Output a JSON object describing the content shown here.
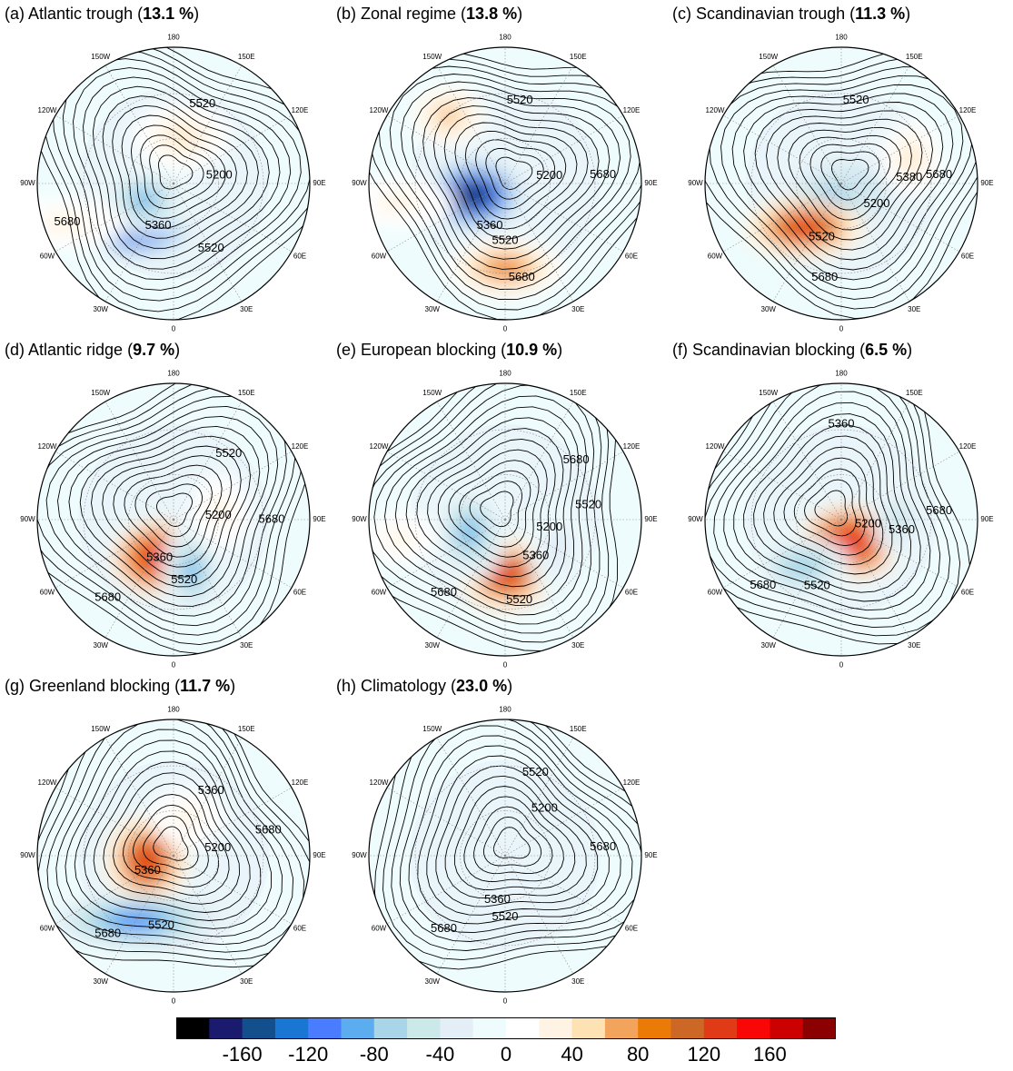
{
  "panels": [
    {
      "id": "a",
      "label": "(a) Atlantic trough",
      "pct": "13.1 %",
      "anoms": [
        {
          "lon": -40,
          "r": 0.42,
          "v": -175,
          "sx": 1.5,
          "sy": 0.8
        },
        {
          "lon": -60,
          "r": 0.25,
          "v": -90,
          "sx": 1.2,
          "sy": 0.9
        },
        {
          "lon": 170,
          "r": 0.35,
          "v": 40,
          "sx": 1.3,
          "sy": 0.9
        },
        {
          "lon": -70,
          "r": 0.85,
          "v": 30,
          "sx": 1.6,
          "sy": 0.7
        }
      ],
      "contours": [
        {
          "text": "5520",
          "lon": 160,
          "r": 0.62
        },
        {
          "text": "5200",
          "lon": 100,
          "r": 0.34
        },
        {
          "text": "5680",
          "lon": -70,
          "r": 0.83
        },
        {
          "text": "5360",
          "lon": -20,
          "r": 0.33
        },
        {
          "text": "5520",
          "lon": 30,
          "r": 0.55
        }
      ]
    },
    {
      "id": "b",
      "label": "(b) Zonal regime",
      "pct": "13.8 %",
      "anoms": [
        {
          "lon": -70,
          "r": 0.25,
          "v": -180,
          "sx": 1.4,
          "sy": 1.0
        },
        {
          "lon": 0,
          "r": 0.62,
          "v": 80,
          "sx": 1.6,
          "sy": 0.8
        },
        {
          "lon": -140,
          "r": 0.65,
          "v": 60,
          "sx": 1.0,
          "sy": 0.8
        },
        {
          "lon": -80,
          "r": 0.8,
          "v": 30,
          "sx": 1.5,
          "sy": 0.7
        }
      ],
      "contours": [
        {
          "text": "5520",
          "lon": 170,
          "r": 0.62
        },
        {
          "text": "5200",
          "lon": 100,
          "r": 0.33
        },
        {
          "text": "5680",
          "lon": 95,
          "r": 0.72
        },
        {
          "text": "5360",
          "lon": -20,
          "r": 0.33
        },
        {
          "text": "5520",
          "lon": 0,
          "r": 0.42
        },
        {
          "text": "5680",
          "lon": 10,
          "r": 0.7
        }
      ]
    },
    {
      "id": "c",
      "label": "(c) Scandinavian trough",
      "pct": "11.3 %",
      "anoms": [
        {
          "lon": 0,
          "r": 0.1,
          "v": -150,
          "sx": 1.4,
          "sy": 1.0
        },
        {
          "lon": -30,
          "r": 0.2,
          "v": -110,
          "sx": 1.3,
          "sy": 0.9
        },
        {
          "lon": -40,
          "r": 0.42,
          "v": 140,
          "sx": 1.6,
          "sy": 0.8
        },
        {
          "lon": 110,
          "r": 0.55,
          "v": 40,
          "sx": 0.8,
          "sy": 1.0
        }
      ],
      "contours": [
        {
          "text": "5520",
          "lon": 170,
          "r": 0.62
        },
        {
          "text": "5380",
          "lon": 95,
          "r": 0.5
        },
        {
          "text": "5200",
          "lon": 60,
          "r": 0.3
        },
        {
          "text": "5680",
          "lon": 95,
          "r": 0.72
        },
        {
          "text": "5520",
          "lon": -20,
          "r": 0.42
        },
        {
          "text": "5680",
          "lon": -10,
          "r": 0.7
        }
      ]
    },
    {
      "id": "d",
      "label": "(d) Atlantic ridge",
      "pct": "9.7 %",
      "anoms": [
        {
          "lon": -20,
          "r": 0.3,
          "v": 150,
          "sx": 1.3,
          "sy": 1.0
        },
        {
          "lon": 20,
          "r": 0.4,
          "v": -90,
          "sx": 0.8,
          "sy": 1.3
        },
        {
          "lon": 100,
          "r": 0.35,
          "v": 30,
          "sx": 0.8,
          "sy": 1.0
        }
      ],
      "contours": [
        {
          "text": "5520",
          "lon": 140,
          "r": 0.63
        },
        {
          "text": "5200",
          "lon": 95,
          "r": 0.33
        },
        {
          "text": "5680",
          "lon": 90,
          "r": 0.72
        },
        {
          "text": "5360",
          "lon": -20,
          "r": 0.3
        },
        {
          "text": "5520",
          "lon": 10,
          "r": 0.45
        },
        {
          "text": "5680",
          "lon": -40,
          "r": 0.75
        }
      ]
    },
    {
      "id": "e",
      "label": "(e) European blocking",
      "pct": "10.9 %",
      "anoms": [
        {
          "lon": 0,
          "r": 0.4,
          "v": 140,
          "sx": 1.3,
          "sy": 1.0
        },
        {
          "lon": -70,
          "r": 0.28,
          "v": -90,
          "sx": 1.0,
          "sy": 1.3
        },
        {
          "lon": 60,
          "r": 0.45,
          "v": -40,
          "sx": 0.8,
          "sy": 1.2
        },
        {
          "lon": -80,
          "r": 0.78,
          "v": 30,
          "sx": 1.0,
          "sy": 0.7
        }
      ],
      "contours": [
        {
          "text": "5680",
          "lon": 130,
          "r": 0.68
        },
        {
          "text": "5520",
          "lon": 100,
          "r": 0.62
        },
        {
          "text": "5200",
          "lon": 80,
          "r": 0.33
        },
        {
          "text": "5360",
          "lon": 40,
          "r": 0.35
        },
        {
          "text": "5520",
          "lon": 10,
          "r": 0.6
        },
        {
          "text": "5680",
          "lon": -40,
          "r": 0.7
        }
      ]
    },
    {
      "id": "f",
      "label": "(f) Scandinavian blocking",
      "pct": "6.5 %",
      "anoms": [
        {
          "lon": 20,
          "r": 0.18,
          "v": 150,
          "sx": 1.4,
          "sy": 1.0
        },
        {
          "lon": -40,
          "r": 0.45,
          "v": -80,
          "sx": 1.3,
          "sy": 0.8
        },
        {
          "lon": 90,
          "r": 0.42,
          "v": -60,
          "sx": 0.7,
          "sy": 1.0
        }
      ],
      "contours": [
        {
          "text": "5360",
          "lon": 180,
          "r": 0.7
        },
        {
          "text": "5200",
          "lon": 80,
          "r": 0.2
        },
        {
          "text": "5360",
          "lon": 80,
          "r": 0.45
        },
        {
          "text": "5680",
          "lon": 95,
          "r": 0.72
        },
        {
          "text": "5680",
          "lon": -50,
          "r": 0.75
        },
        {
          "text": "5520",
          "lon": -20,
          "r": 0.52
        }
      ]
    },
    {
      "id": "g",
      "label": "(g) Greenland blocking",
      "pct": "11.7 %",
      "anoms": [
        {
          "lon": -80,
          "r": 0.2,
          "v": 145,
          "sx": 1.1,
          "sy": 1.2
        },
        {
          "lon": -30,
          "r": 0.55,
          "v": -120,
          "sx": 2.2,
          "sy": 0.7
        },
        {
          "lon": 160,
          "r": 0.3,
          "v": 30,
          "sx": 1.0,
          "sy": 0.8
        }
      ],
      "contours": [
        {
          "text": "5360",
          "lon": 150,
          "r": 0.55
        },
        {
          "text": "5680",
          "lon": 105,
          "r": 0.72
        },
        {
          "text": "5200",
          "lon": 100,
          "r": 0.33
        },
        {
          "text": "5360",
          "lon": -60,
          "r": 0.22
        },
        {
          "text": "5520",
          "lon": -10,
          "r": 0.52
        },
        {
          "text": "5680",
          "lon": -40,
          "r": 0.75
        }
      ]
    },
    {
      "id": "h",
      "label": "(h) Climatology",
      "pct": "23.0 %",
      "anoms": [],
      "contours": [
        {
          "text": "5520",
          "lon": 160,
          "r": 0.65
        },
        {
          "text": "5200",
          "lon": 140,
          "r": 0.45
        },
        {
          "text": "5680",
          "lon": 95,
          "r": 0.72
        },
        {
          "text": "5360",
          "lon": -10,
          "r": 0.33
        },
        {
          "text": "5520",
          "lon": 0,
          "r": 0.45
        },
        {
          "text": "5680",
          "lon": -40,
          "r": 0.7
        }
      ]
    }
  ],
  "lon_labels": [
    "180",
    "150E",
    "120E",
    "90E",
    "60E",
    "30E",
    "0",
    "30W",
    "60W",
    "90W",
    "120W",
    "150W"
  ],
  "colorbar": {
    "colors": [
      "#000000",
      "#1a1a6e",
      "#124f8c",
      "#1976d2",
      "#4a7cff",
      "#5cadf0",
      "#a8d6e8",
      "#cce9ea",
      "#e4eef7",
      "#eefcfd",
      "#ffffff",
      "#fff4e4",
      "#ffe2b4",
      "#f2a35c",
      "#ec7a06",
      "#cd6726",
      "#e03a16",
      "#f90606",
      "#cc0000",
      "#8b0000"
    ],
    "ticks": [
      {
        "label": "-160",
        "frac": 0.1
      },
      {
        "label": "-120",
        "frac": 0.2
      },
      {
        "label": "-80",
        "frac": 0.3
      },
      {
        "label": "-40",
        "frac": 0.4
      },
      {
        "label": "0",
        "frac": 0.5
      },
      {
        "label": "40",
        "frac": 0.6
      },
      {
        "label": "80",
        "frac": 0.7
      },
      {
        "label": "120",
        "frac": 0.8
      },
      {
        "label": "160",
        "frac": 0.9
      }
    ]
  }
}
